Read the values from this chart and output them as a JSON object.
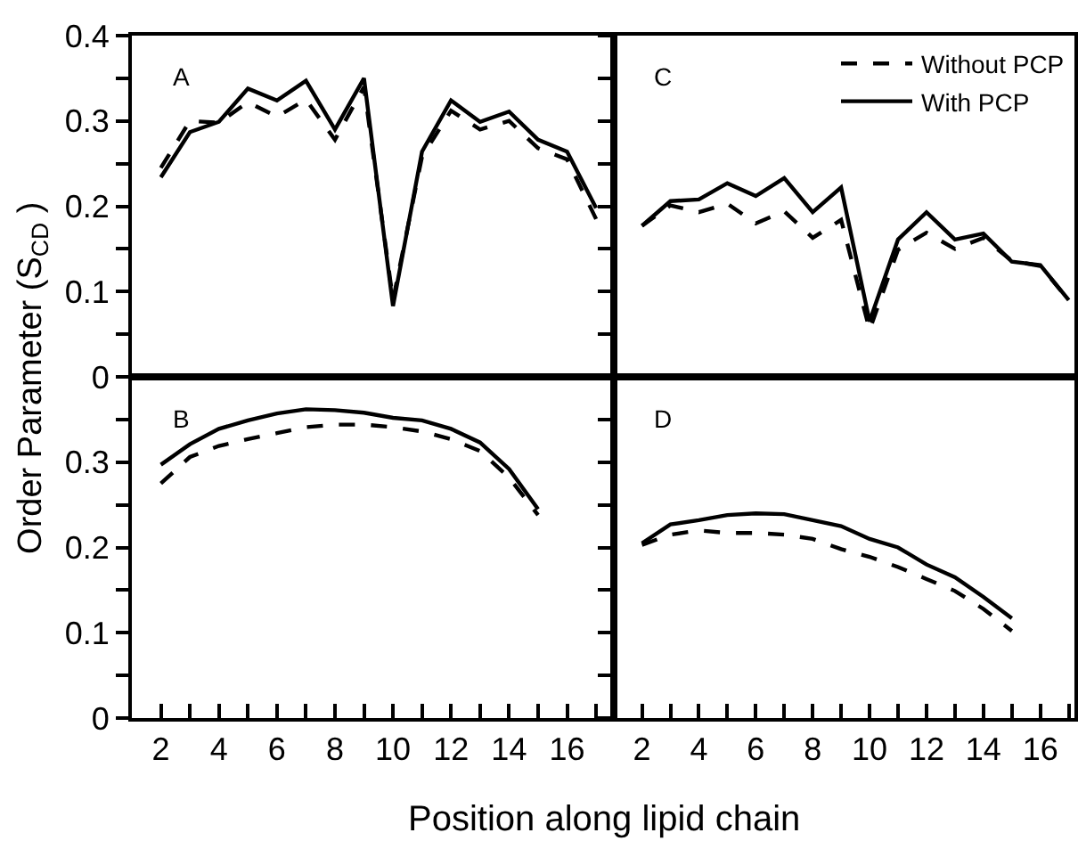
{
  "chart_data": [
    {
      "type": "line",
      "ylabel": "Order Parameter (S$_{CD}$ )",
      "annotations": [
        "A"
      ],
      "x": [
        2,
        3,
        4,
        5,
        6,
        7,
        8,
        9,
        10,
        11,
        12,
        13,
        14,
        15,
        16,
        17
      ],
      "xlim": [
        1,
        17.6
      ],
      "ylim": [
        0,
        0.4
      ],
      "yticks": [
        0,
        {
          "value": 0.05,
          "label": null
        },
        0.1,
        {
          "value": 0.15,
          "label": null
        },
        0.2,
        {
          "value": 0.25,
          "label": null
        },
        0.3,
        {
          "value": 0.35,
          "label": null
        },
        0.4
      ],
      "tick_labels": "y",
      "grid": false,
      "legend": false,
      "marker": "none",
      "series": [
        {
          "color": "#000000",
          "line_style": "dashed",
          "values": [
            0.245,
            0.3,
            0.298,
            0.322,
            0.305,
            0.325,
            0.278,
            0.34,
            0.09,
            0.258,
            0.312,
            0.29,
            0.3,
            0.268,
            0.255,
            0.185
          ]
        },
        {
          "color": "#000000",
          "line_style": "solid",
          "values": [
            0.234,
            0.287,
            0.299,
            0.338,
            0.324,
            0.347,
            0.29,
            0.35,
            0.083,
            0.264,
            0.324,
            0.299,
            0.311,
            0.278,
            0.264,
            0.198
          ]
        }
      ]
    },
    {
      "type": "line",
      "annotations": [
        "C"
      ],
      "x": [
        2,
        3,
        4,
        5,
        6,
        7,
        8,
        9,
        10,
        11,
        12,
        13,
        14,
        15,
        16,
        17
      ],
      "xlim": [
        1,
        17.2
      ],
      "ylim": [
        0,
        0.4
      ],
      "yticks": [
        0,
        0.05,
        0.1,
        0.15,
        0.2,
        0.25,
        0.3,
        0.35,
        0.4
      ],
      "tick_labels": false,
      "grid": false,
      "legend": "top right",
      "marker": "none",
      "series": [
        {
          "name": "Without PCP",
          "color": "#000000",
          "line_style": "dashed",
          "values": [
            0.177,
            0.201,
            0.193,
            0.203,
            0.18,
            0.194,
            0.163,
            0.184,
            0.055,
            0.149,
            0.169,
            0.15,
            0.163,
            0.136,
            0.13,
            0.09
          ]
        },
        {
          "name": "With PCP",
          "color": "#000000",
          "line_style": "solid",
          "values": [
            0.177,
            0.206,
            0.208,
            0.227,
            0.212,
            0.233,
            0.193,
            0.222,
            0.065,
            0.161,
            0.193,
            0.161,
            0.168,
            0.135,
            0.131,
            0.09
          ]
        }
      ]
    },
    {
      "type": "line",
      "xlabel": "Position along lipid chain",
      "annotations": [
        "B"
      ],
      "x": [
        2,
        3,
        4,
        5,
        6,
        7,
        8,
        9,
        10,
        11,
        12,
        13,
        14,
        15
      ],
      "xlim": [
        1,
        17.6
      ],
      "xticks": [
        2,
        {
          "value": 3,
          "label": null
        },
        4,
        {
          "value": 5,
          "label": null
        },
        6,
        {
          "value": 7,
          "label": null
        },
        8,
        {
          "value": 9,
          "label": null
        },
        10,
        {
          "value": 11,
          "label": null
        },
        12,
        {
          "value": 13,
          "label": null
        },
        14,
        {
          "value": 15,
          "label": null
        },
        16,
        {
          "value": 17,
          "label": null
        }
      ],
      "ylim": [
        0,
        0.4
      ],
      "yticks": [
        0,
        {
          "value": 0.05,
          "label": null
        },
        0.1,
        {
          "value": 0.15,
          "label": null
        },
        0.2,
        {
          "value": 0.25,
          "label": null
        },
        0.3,
        {
          "value": 0.35,
          "label": null
        }
      ],
      "grid": false,
      "legend": false,
      "marker": "none",
      "series": [
        {
          "color": "#000000",
          "line_style": "dashed",
          "values": [
            0.275,
            0.306,
            0.319,
            0.327,
            0.334,
            0.341,
            0.344,
            0.344,
            0.341,
            0.336,
            0.327,
            0.313,
            0.282,
            0.238
          ]
        },
        {
          "color": "#000000",
          "line_style": "solid",
          "values": [
            0.297,
            0.321,
            0.339,
            0.349,
            0.357,
            0.362,
            0.361,
            0.358,
            0.352,
            0.349,
            0.339,
            0.323,
            0.292,
            0.245
          ]
        }
      ]
    },
    {
      "type": "line",
      "annotations": [
        "D"
      ],
      "x": [
        2,
        3,
        4,
        5,
        6,
        7,
        8,
        9,
        10,
        11,
        12,
        13,
        14,
        15
      ],
      "xlim": [
        1,
        17.2
      ],
      "xticks": [
        2,
        {
          "value": 3,
          "label": null
        },
        4,
        {
          "value": 5,
          "label": null
        },
        6,
        {
          "value": 7,
          "label": null
        },
        8,
        {
          "value": 9,
          "label": null
        },
        10,
        {
          "value": 11,
          "label": null
        },
        12,
        {
          "value": 13,
          "label": null
        },
        14,
        {
          "value": 15,
          "label": null
        },
        16,
        {
          "value": 17,
          "label": null
        }
      ],
      "ylim": [
        0,
        0.4
      ],
      "yticks": [
        0,
        0.05,
        0.1,
        0.15,
        0.2,
        0.25,
        0.3,
        0.35
      ],
      "tick_labels": "x",
      "grid": false,
      "legend": false,
      "marker": "none",
      "series": [
        {
          "color": "#000000",
          "line_style": "dashed",
          "values": [
            0.203,
            0.215,
            0.22,
            0.217,
            0.217,
            0.215,
            0.21,
            0.198,
            0.189,
            0.177,
            0.163,
            0.149,
            0.128,
            0.102
          ]
        },
        {
          "color": "#000000",
          "line_style": "solid",
          "values": [
            0.205,
            0.227,
            0.232,
            0.238,
            0.24,
            0.239,
            0.232,
            0.225,
            0.21,
            0.2,
            0.18,
            0.165,
            0.142,
            0.117
          ]
        }
      ]
    }
  ]
}
